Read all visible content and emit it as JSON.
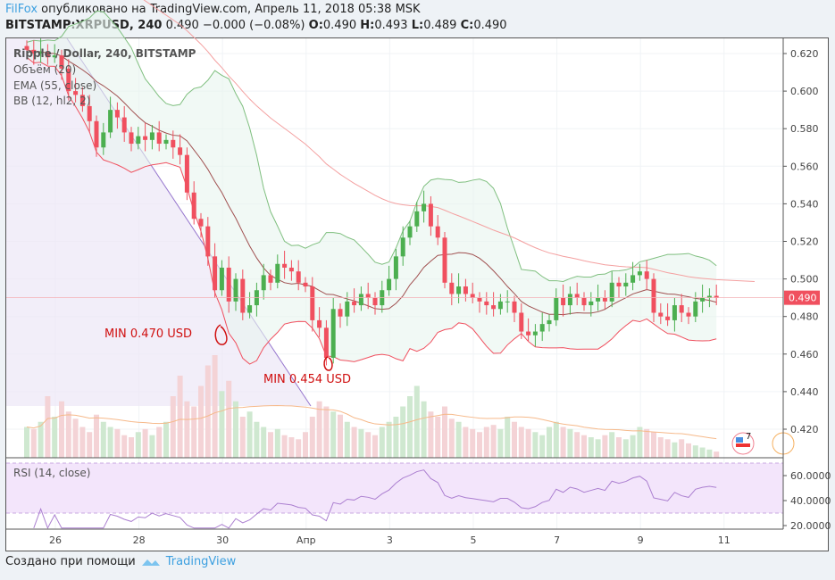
{
  "header": {
    "author": "FilFox",
    "published": "опубликовано на TradingView.com, Апрель 11, 2018 05:38 MSK",
    "symbol": "BITSTAMP:XRPUSD, 240",
    "quote": "0.490 −0.000 (−0.08%)",
    "o_label": "O:",
    "o": "0.490",
    "h_label": "H:",
    "h": "0.493",
    "l_label": "L:",
    "l": "0.489",
    "c_label": "C:",
    "c": "0.490"
  },
  "legend": {
    "title": "Ripple / Dollar, 240, BITSTAMP",
    "volume": "Объём (20)",
    "ema": "EMA (55, close)",
    "bb": "BB (12, hl2, 2)",
    "rsi": "RSI (14, close)"
  },
  "annotations": {
    "min1": "MIN 0.470 USD",
    "min2": "MIN 0.454 USD"
  },
  "event_badge": "7",
  "footer": {
    "made_with": "Создано при помощи",
    "brand": "TradingView"
  },
  "chart_data": {
    "type": "candlestick",
    "price_ticks": [
      "0.620",
      "0.600",
      "0.580",
      "0.560",
      "0.540",
      "0.520",
      "0.500",
      "0.480",
      "0.460",
      "0.440",
      "0.420"
    ],
    "price_range": [
      0.4085,
      0.6305
    ],
    "last_price": "0.490",
    "rsi_ticks": [
      "60.0000",
      "40.0000",
      "20.0000"
    ],
    "rsi_range": [
      17,
      75
    ],
    "x_labels": [
      "26",
      "28",
      "30",
      "Апр",
      "3",
      "5",
      "7",
      "9",
      "11"
    ],
    "closes": [
      0.622,
      0.62,
      0.621,
      0.618,
      0.619,
      0.612,
      0.6,
      0.598,
      0.592,
      0.584,
      0.57,
      0.578,
      0.59,
      0.586,
      0.578,
      0.572,
      0.576,
      0.574,
      0.578,
      0.572,
      0.574,
      0.57,
      0.566,
      0.546,
      0.532,
      0.528,
      0.512,
      0.494,
      0.506,
      0.488,
      0.5,
      0.482,
      0.486,
      0.494,
      0.502,
      0.498,
      0.508,
      0.506,
      0.504,
      0.498,
      0.496,
      0.478,
      0.474,
      0.458,
      0.484,
      0.48,
      0.488,
      0.486,
      0.492,
      0.49,
      0.486,
      0.494,
      0.5,
      0.512,
      0.522,
      0.528,
      0.536,
      0.54,
      0.528,
      0.522,
      0.498,
      0.492,
      0.496,
      0.492,
      0.49,
      0.488,
      0.486,
      0.484,
      0.488,
      0.488,
      0.482,
      0.472,
      0.47,
      0.472,
      0.476,
      0.478,
      0.49,
      0.486,
      0.492,
      0.49,
      0.486,
      0.488,
      0.49,
      0.488,
      0.498,
      0.496,
      0.498,
      0.502,
      0.504,
      0.5,
      0.482,
      0.48,
      0.478,
      0.486,
      0.482,
      0.48,
      0.488,
      0.49,
      0.491,
      0.49
    ],
    "volumes": [
      30,
      28,
      35,
      60,
      40,
      55,
      45,
      38,
      30,
      25,
      42,
      35,
      30,
      28,
      22,
      20,
      25,
      28,
      22,
      30,
      35,
      60,
      80,
      55,
      50,
      70,
      90,
      100,
      65,
      75,
      55,
      40,
      45,
      35,
      30,
      25,
      28,
      22,
      20,
      18,
      25,
      40,
      55,
      50,
      45,
      42,
      35,
      30,
      28,
      25,
      22,
      30,
      35,
      40,
      50,
      60,
      70,
      55,
      45,
      40,
      50,
      38,
      35,
      30,
      28,
      25,
      30,
      32,
      28,
      40,
      35,
      30,
      28,
      25,
      22,
      30,
      35,
      30,
      28,
      25,
      22,
      20,
      18,
      22,
      25,
      20,
      18,
      22,
      30,
      28,
      25,
      20,
      18,
      15,
      18,
      14,
      12,
      10,
      8,
      6
    ]
  },
  "colors": {
    "up": "#4caf50",
    "down": "#f0505f",
    "bb": "#7fbf7f",
    "ema": "#f4a0a0",
    "trend": "#9575cd",
    "rsi": "#ab7fd0",
    "accent": "#3da0e0",
    "price_tag": "#f0505f"
  }
}
